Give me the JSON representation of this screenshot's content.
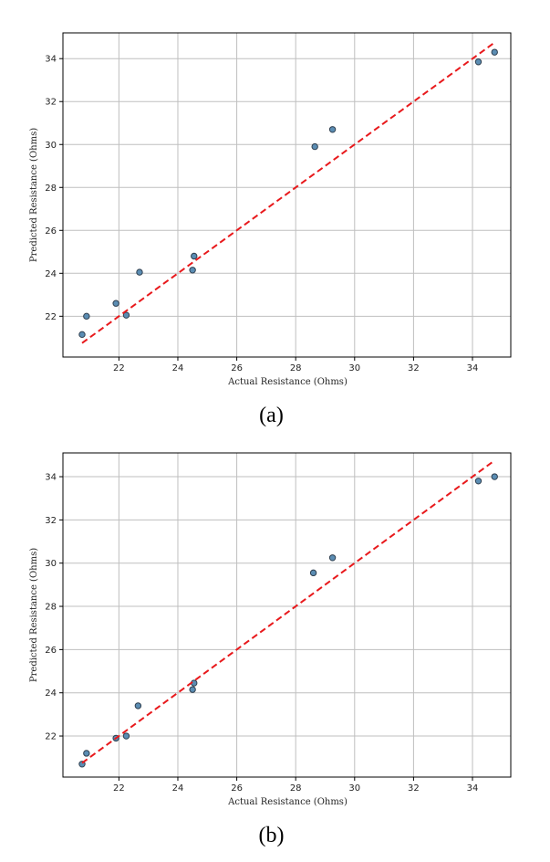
{
  "colors": {
    "point_fill": "#5b8db3",
    "point_edge": "#2f3f4f",
    "ref_line": "#e8191c",
    "grid": "#bfbfbf",
    "frame": "#000000"
  },
  "chart_data": [
    {
      "type": "scatter",
      "panel_caption": "(a)",
      "title": "",
      "xlabel": "Actual Resistance (Ohms)",
      "ylabel": "Predicted Resistance (Ohms)",
      "xlim": [
        20.1,
        35.3
      ],
      "ylim": [
        20.1,
        35.2
      ],
      "xticks": [
        22,
        24,
        26,
        28,
        30,
        32,
        34
      ],
      "yticks": [
        22,
        24,
        26,
        28,
        30,
        32,
        34
      ],
      "grid": true,
      "legend": "none",
      "reference_line": {
        "style": "dashed",
        "x": [
          20.75,
          34.75
        ],
        "y": [
          20.75,
          34.75
        ]
      },
      "series": [
        {
          "x": [
            20.75,
            20.9,
            21.9,
            22.25,
            22.7,
            24.5,
            24.55,
            28.65,
            29.25,
            34.2,
            34.75
          ],
          "y": [
            21.15,
            22.0,
            22.6,
            22.05,
            24.05,
            24.15,
            24.8,
            29.9,
            30.7,
            33.85,
            34.3
          ]
        }
      ]
    },
    {
      "type": "scatter",
      "panel_caption": "(b)",
      "title": "",
      "xlabel": "Actual Resistance (Ohms)",
      "ylabel": "Predicted Resistance (Ohms)",
      "xlim": [
        20.1,
        35.3
      ],
      "ylim": [
        20.1,
        35.1
      ],
      "xticks": [
        22,
        24,
        26,
        28,
        30,
        32,
        34
      ],
      "yticks": [
        22,
        24,
        26,
        28,
        30,
        32,
        34
      ],
      "grid": true,
      "legend": "none",
      "reference_line": {
        "style": "dashed",
        "x": [
          20.75,
          34.75
        ],
        "y": [
          20.75,
          34.75
        ]
      },
      "series": [
        {
          "x": [
            20.75,
            20.9,
            21.9,
            22.25,
            22.65,
            24.5,
            24.55,
            28.6,
            29.25,
            34.2,
            34.75
          ],
          "y": [
            20.7,
            21.2,
            21.9,
            22.0,
            23.4,
            24.15,
            24.45,
            29.55,
            30.25,
            33.8,
            34.0
          ]
        }
      ]
    }
  ]
}
